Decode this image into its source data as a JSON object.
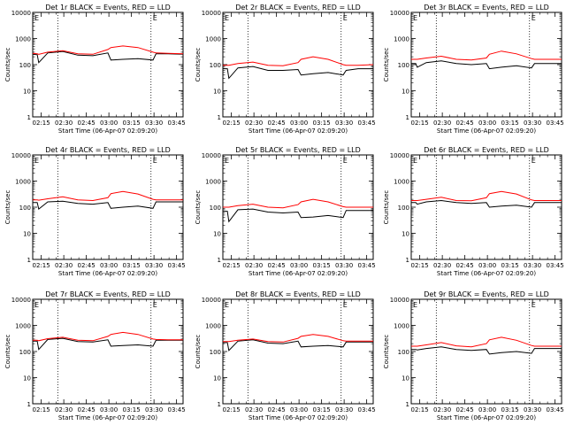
{
  "colors": {
    "events": "#000000",
    "lld": "#ff0000",
    "axes": "#000000",
    "background": "#ffffff"
  },
  "chart_data": [
    {
      "type": "line",
      "title": "Det 1r BLACK = Events, RED = LLD",
      "xlabel": "Start Time (06-Apr-07 02:09:20)",
      "ylabel": "Counts/sec",
      "yscale": "log",
      "ylim": [
        1,
        10000
      ],
      "xlim_minutes": [
        0,
        100
      ],
      "x_ticks": [
        "02:15",
        "02:30",
        "02:45",
        "03:00",
        "03:15",
        "03:30",
        "03:45"
      ],
      "y_ticks": [
        "1",
        "10",
        "100",
        "1000",
        "10000"
      ],
      "vlines": [
        "02:26",
        "03:28"
      ],
      "marker_label": "E",
      "x": [
        0,
        3,
        4,
        10,
        20,
        30,
        40,
        50,
        52,
        60,
        70,
        80,
        82,
        90,
        100
      ],
      "series": [
        {
          "name": "Events",
          "values": [
            250,
            240,
            120,
            280,
            320,
            230,
            220,
            280,
            150,
            160,
            170,
            150,
            260,
            260,
            250
          ]
        },
        {
          "name": "LLD",
          "values": [
            270,
            260,
            250,
            300,
            340,
            260,
            250,
            380,
            450,
            520,
            450,
            300,
            280,
            270,
            260
          ]
        }
      ]
    },
    {
      "type": "line",
      "title": "Det 2r BLACK = Events, RED = LLD",
      "xlabel": "Start Time (06-Apr-07 02:09:20)",
      "ylabel": "Counts/sec",
      "yscale": "log",
      "ylim": [
        1,
        10000
      ],
      "xlim_minutes": [
        0,
        100
      ],
      "x_ticks": [
        "02:15",
        "02:30",
        "02:45",
        "03:00",
        "03:15",
        "03:30",
        "03:45"
      ],
      "y_ticks": [
        "1",
        "10",
        "100",
        "1000",
        "10000"
      ],
      "vlines": [
        "02:26",
        "03:28"
      ],
      "marker_label": "E",
      "x": [
        0,
        3,
        4,
        10,
        20,
        30,
        40,
        50,
        52,
        60,
        70,
        80,
        82,
        90,
        100
      ],
      "series": [
        {
          "name": "Events",
          "values": [
            70,
            70,
            30,
            75,
            85,
            60,
            60,
            65,
            40,
            45,
            50,
            40,
            60,
            70,
            70
          ]
        },
        {
          "name": "LLD",
          "values": [
            95,
            95,
            95,
            110,
            125,
            95,
            90,
            120,
            160,
            200,
            160,
            100,
            95,
            95,
            100
          ]
        }
      ]
    },
    {
      "type": "line",
      "title": "Det 3r BLACK = Events, RED = LLD",
      "xlabel": "Start Time (06-Apr-07 02:09:20)",
      "ylabel": "Counts/sec",
      "yscale": "log",
      "ylim": [
        1,
        10000
      ],
      "xlim_minutes": [
        0,
        100
      ],
      "x_ticks": [
        "02:15",
        "02:30",
        "02:45",
        "03:00",
        "03:15",
        "03:30",
        "03:45"
      ],
      "y_ticks": [
        "1",
        "10",
        "100",
        "1000",
        "10000"
      ],
      "vlines": [
        "02:26",
        "03:28"
      ],
      "marker_label": "E",
      "x": [
        0,
        3,
        4,
        10,
        20,
        30,
        40,
        50,
        52,
        60,
        70,
        80,
        82,
        90,
        100
      ],
      "series": [
        {
          "name": "Events",
          "values": [
            110,
            110,
            80,
            120,
            140,
            110,
            100,
            110,
            70,
            80,
            90,
            75,
            110,
            110,
            110
          ]
        },
        {
          "name": "LLD",
          "values": [
            160,
            160,
            160,
            180,
            210,
            160,
            150,
            180,
            250,
            330,
            260,
            170,
            160,
            160,
            160
          ]
        }
      ]
    },
    {
      "type": "line",
      "title": "Det 4r BLACK = Events, RED = LLD",
      "xlabel": "Start Time (06-Apr-07 02:09:20)",
      "ylabel": "Counts/sec",
      "yscale": "log",
      "ylim": [
        1,
        10000
      ],
      "xlim_minutes": [
        0,
        100
      ],
      "x_ticks": [
        "02:15",
        "02:30",
        "02:45",
        "03:00",
        "03:15",
        "03:30",
        "03:45"
      ],
      "y_ticks": [
        "1",
        "10",
        "100",
        "1000",
        "10000"
      ],
      "vlines": [
        "02:26",
        "03:28"
      ],
      "marker_label": "E",
      "x": [
        0,
        3,
        4,
        10,
        20,
        30,
        40,
        50,
        52,
        60,
        70,
        80,
        82,
        90,
        100
      ],
      "series": [
        {
          "name": "Events",
          "values": [
            150,
            150,
            85,
            160,
            170,
            140,
            130,
            150,
            90,
            100,
            110,
            90,
            160,
            160,
            160
          ]
        },
        {
          "name": "LLD",
          "values": [
            190,
            190,
            185,
            210,
            250,
            190,
            180,
            230,
            330,
            400,
            320,
            200,
            190,
            190,
            190
          ]
        }
      ]
    },
    {
      "type": "line",
      "title": "Det 5r BLACK = Events, RED = LLD",
      "xlabel": "Start Time (06-Apr-07 02:09:20)",
      "ylabel": "Counts/sec",
      "yscale": "log",
      "ylim": [
        1,
        10000
      ],
      "xlim_minutes": [
        0,
        100
      ],
      "x_ticks": [
        "02:15",
        "02:30",
        "02:45",
        "03:00",
        "03:15",
        "03:30",
        "03:45"
      ],
      "y_ticks": [
        "1",
        "10",
        "100",
        "1000",
        "10000"
      ],
      "vlines": [
        "02:26",
        "03:28"
      ],
      "marker_label": "E",
      "x": [
        0,
        3,
        4,
        10,
        20,
        30,
        40,
        50,
        52,
        60,
        70,
        80,
        82,
        90,
        100
      ],
      "series": [
        {
          "name": "Events",
          "values": [
            70,
            70,
            28,
            80,
            85,
            65,
            60,
            65,
            40,
            42,
            48,
            40,
            75,
            75,
            75
          ]
        },
        {
          "name": "LLD",
          "values": [
            100,
            100,
            100,
            115,
            130,
            100,
            95,
            125,
            160,
            200,
            160,
            105,
            100,
            100,
            100
          ]
        }
      ]
    },
    {
      "type": "line",
      "title": "Det 6r BLACK = Events, RED = LLD",
      "xlabel": "Start Time (06-Apr-07 02:09:20)",
      "ylabel": "Counts/sec",
      "yscale": "log",
      "ylim": [
        1,
        10000
      ],
      "xlim_minutes": [
        0,
        100
      ],
      "x_ticks": [
        "02:15",
        "02:30",
        "02:45",
        "03:00",
        "03:15",
        "03:30",
        "03:45"
      ],
      "y_ticks": [
        "1",
        "10",
        "100",
        "1000",
        "10000"
      ],
      "vlines": [
        "02:26",
        "03:28"
      ],
      "marker_label": "E",
      "x": [
        0,
        3,
        4,
        10,
        20,
        30,
        40,
        50,
        52,
        60,
        70,
        80,
        82,
        90,
        100
      ],
      "series": [
        {
          "name": "Events",
          "values": [
            150,
            150,
            130,
            160,
            180,
            150,
            140,
            150,
            100,
            110,
            120,
            100,
            150,
            150,
            150
          ]
        },
        {
          "name": "LLD",
          "values": [
            180,
            180,
            180,
            200,
            240,
            180,
            175,
            230,
            330,
            400,
            320,
            190,
            180,
            180,
            180
          ]
        }
      ]
    },
    {
      "type": "line",
      "title": "Det 7r BLACK = Events, RED = LLD",
      "xlabel": "Start Time (06-Apr-07 02:09:20)",
      "ylabel": "Counts/sec",
      "yscale": "log",
      "ylim": [
        1,
        10000
      ],
      "xlim_minutes": [
        0,
        100
      ],
      "x_ticks": [
        "02:15",
        "02:30",
        "02:45",
        "03:00",
        "03:15",
        "03:30",
        "03:45"
      ],
      "y_ticks": [
        "1",
        "10",
        "100",
        "1000",
        "10000"
      ],
      "vlines": [
        "02:26",
        "03:28"
      ],
      "marker_label": "E",
      "x": [
        0,
        3,
        4,
        10,
        20,
        30,
        40,
        50,
        52,
        60,
        70,
        80,
        82,
        90,
        100
      ],
      "series": [
        {
          "name": "Events",
          "values": [
            250,
            250,
            120,
            290,
            320,
            240,
            230,
            280,
            160,
            170,
            180,
            160,
            270,
            270,
            270
          ]
        },
        {
          "name": "LLD",
          "values": [
            270,
            270,
            260,
            310,
            350,
            270,
            260,
            380,
            450,
            540,
            450,
            300,
            290,
            280,
            280
          ]
        }
      ]
    },
    {
      "type": "line",
      "title": "Det 8r BLACK = Events, RED = LLD",
      "xlabel": "Start Time (06-Apr-07 02:09:20)",
      "ylabel": "Counts/sec",
      "yscale": "log",
      "ylim": [
        1,
        10000
      ],
      "xlim_minutes": [
        0,
        100
      ],
      "x_ticks": [
        "02:15",
        "02:30",
        "02:45",
        "03:00",
        "03:15",
        "03:30",
        "03:45"
      ],
      "y_ticks": [
        "1",
        "10",
        "100",
        "1000",
        "10000"
      ],
      "vlines": [
        "02:26",
        "03:28"
      ],
      "marker_label": "E",
      "x": [
        0,
        3,
        4,
        10,
        20,
        30,
        40,
        50,
        52,
        60,
        70,
        80,
        82,
        90,
        100
      ],
      "series": [
        {
          "name": "Events",
          "values": [
            220,
            220,
            110,
            250,
            280,
            210,
            200,
            250,
            150,
            160,
            170,
            150,
            230,
            230,
            230
          ]
        },
        {
          "name": "LLD",
          "values": [
            240,
            240,
            240,
            270,
            300,
            240,
            230,
            320,
            380,
            450,
            380,
            260,
            250,
            250,
            250
          ]
        }
      ]
    },
    {
      "type": "line",
      "title": "Det 9r BLACK = Events, RED = LLD",
      "xlabel": "Start Time (06-Apr-07 02:09:20)",
      "ylabel": "Counts/sec",
      "yscale": "log",
      "ylim": [
        1,
        10000
      ],
      "xlim_minutes": [
        0,
        100
      ],
      "x_ticks": [
        "02:15",
        "02:30",
        "02:45",
        "03:00",
        "03:15",
        "03:30",
        "03:45"
      ],
      "y_ticks": [
        "1",
        "10",
        "100",
        "1000",
        "10000"
      ],
      "vlines": [
        "02:26",
        "03:28"
      ],
      "marker_label": "E",
      "x": [
        0,
        3,
        4,
        10,
        20,
        30,
        40,
        50,
        52,
        60,
        70,
        80,
        82,
        90,
        100
      ],
      "series": [
        {
          "name": "Events",
          "values": [
            120,
            120,
            115,
            130,
            150,
            120,
            110,
            120,
            80,
            90,
            100,
            85,
            130,
            130,
            130
          ]
        },
        {
          "name": "LLD",
          "values": [
            160,
            160,
            160,
            180,
            220,
            165,
            150,
            200,
            280,
            350,
            270,
            170,
            160,
            160,
            160
          ]
        }
      ]
    }
  ]
}
